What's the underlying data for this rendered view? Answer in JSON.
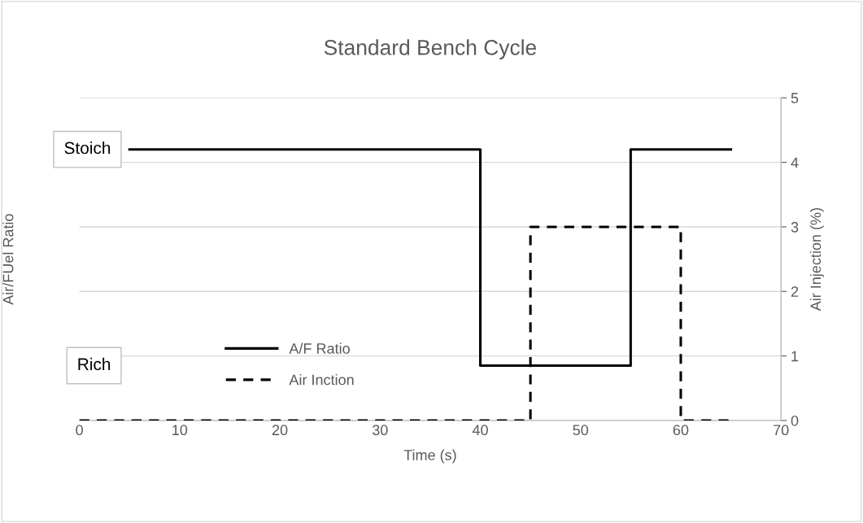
{
  "chart_data": {
    "type": "step",
    "title": "Standard Bench Cycle",
    "xlabel": "Time (s)",
    "ylabel": "Air/FUel Ratio",
    "y2label": "Air Injection (%)",
    "series": [
      {
        "name": "A/F Ratio",
        "color": "#000000",
        "line_style": "solid",
        "axis": "y2",
        "x": [
          5,
          40,
          55,
          65
        ],
        "values": [
          4.2,
          0.85,
          4.2,
          4.2
        ]
      },
      {
        "name": "Air Inction",
        "color": "#000000",
        "line_style": "dashed",
        "axis": "y2",
        "x": [
          0,
          45,
          60,
          65
        ],
        "values": [
          0,
          3,
          0,
          0
        ]
      }
    ],
    "xlim": [
      0,
      70
    ],
    "xticks": [
      0,
      10,
      20,
      30,
      40,
      50,
      60,
      70
    ],
    "annotations": [
      "Stoich",
      "Rich"
    ],
    "y2lim": [
      0,
      5
    ],
    "y2ticks": [
      0,
      1,
      2,
      3,
      4,
      5
    ],
    "grid": "y2",
    "legend": "bottom left"
  }
}
